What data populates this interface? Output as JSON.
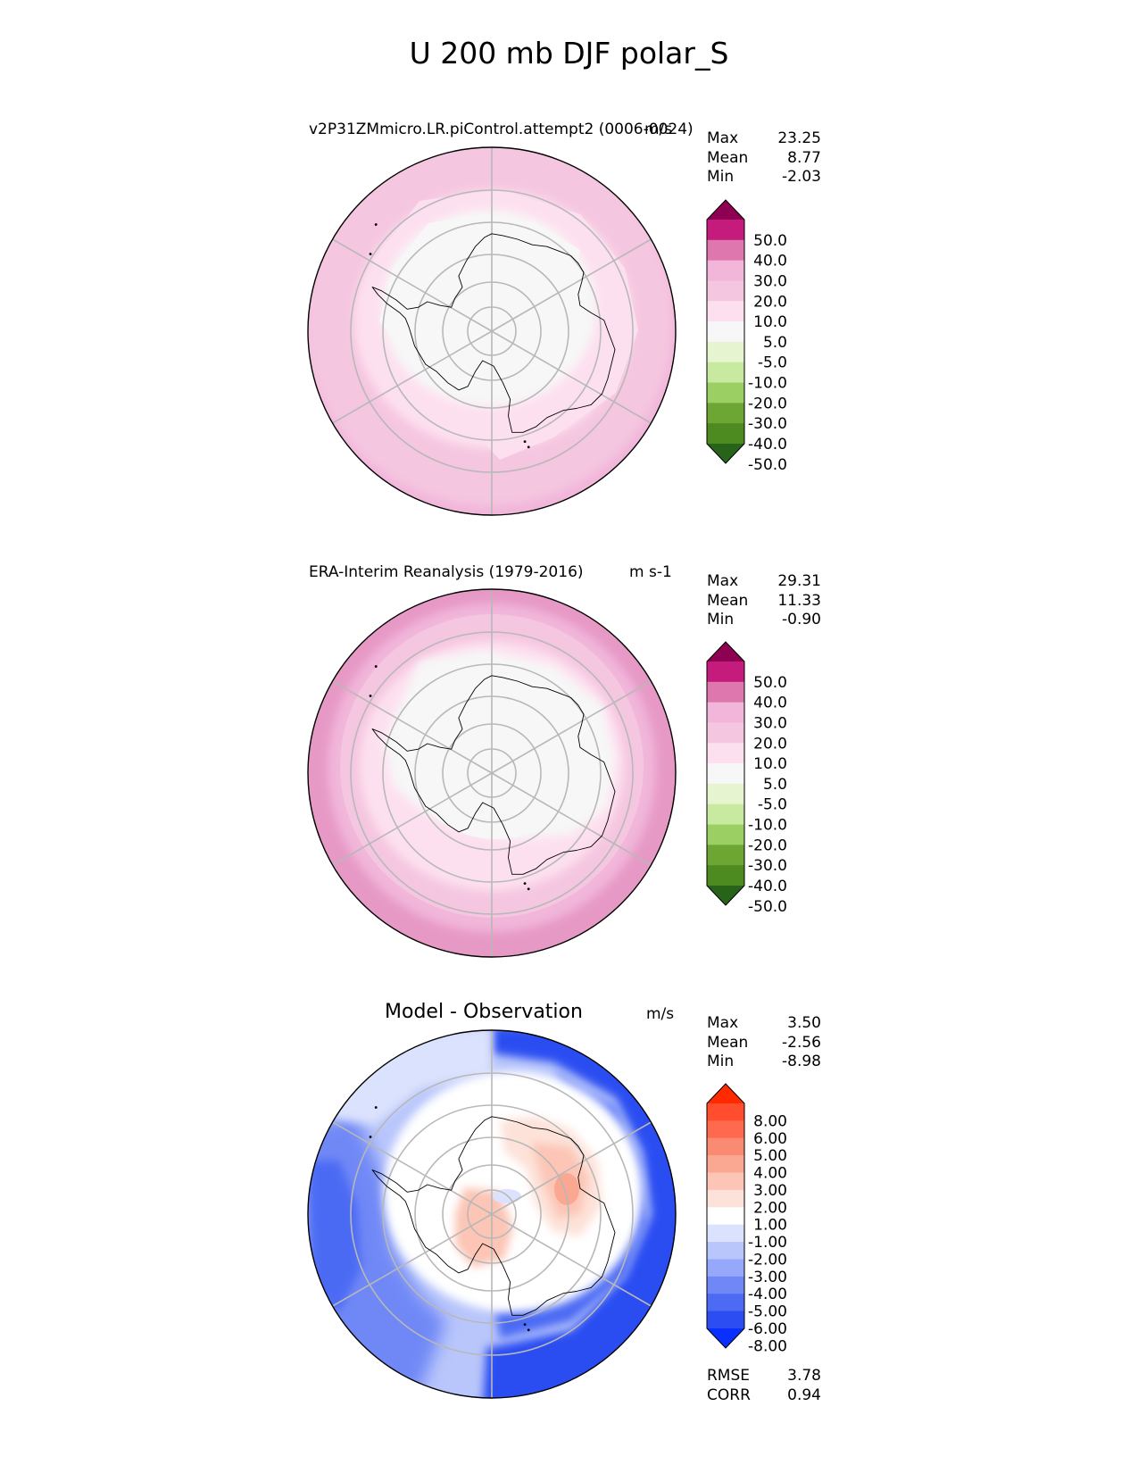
{
  "main_title": "U 200 mb DJF polar_S",
  "panels": [
    {
      "title": "v2P31ZMmicro.LR.piControl.attempt2 (0006-0024)",
      "units": "m/s",
      "stats": [
        {
          "label": "Max",
          "value": "23.25"
        },
        {
          "label": "Mean",
          "value": "8.77"
        },
        {
          "label": "Min",
          "value": "-2.03"
        }
      ],
      "colorbar": {
        "labels": [
          "50.0",
          "40.0",
          "30.0",
          "20.0",
          "10.0",
          "5.0",
          "-5.0",
          "-10.0",
          "-20.0",
          "-30.0",
          "-40.0",
          "-50.0"
        ],
        "colors": [
          "#8e0152",
          "#c51b7d",
          "#de77ae",
          "#f1b6da",
          "#f5c6e0",
          "#fde0ef",
          "#f7f7f7",
          "#e6f5d0",
          "#c8e9a0",
          "#9ccf63",
          "#6ea634",
          "#4d8a1f",
          "#276419"
        ]
      }
    },
    {
      "title": "ERA-Interim Reanalysis (1979-2016)",
      "units": "m s-1",
      "stats": [
        {
          "label": "Max",
          "value": "29.31"
        },
        {
          "label": "Mean",
          "value": "11.33"
        },
        {
          "label": "Min",
          "value": "-0.90"
        }
      ],
      "colorbar": {
        "labels": [
          "50.0",
          "40.0",
          "30.0",
          "20.0",
          "10.0",
          "5.0",
          "-5.0",
          "-10.0",
          "-20.0",
          "-30.0",
          "-40.0",
          "-50.0"
        ],
        "colors": [
          "#8e0152",
          "#c51b7d",
          "#de77ae",
          "#f1b6da",
          "#f5c6e0",
          "#fde0ef",
          "#f7f7f7",
          "#e6f5d0",
          "#c8e9a0",
          "#9ccf63",
          "#6ea634",
          "#4d8a1f",
          "#276419"
        ]
      }
    },
    {
      "title": "Model - Observation",
      "units": "m/s",
      "stats": [
        {
          "label": "Max",
          "value": "3.50"
        },
        {
          "label": "Mean",
          "value": "-2.56"
        },
        {
          "label": "Min",
          "value": "-8.98"
        }
      ],
      "extra_stats": [
        {
          "label": "RMSE",
          "value": "3.78"
        },
        {
          "label": "CORR",
          "value": "0.94"
        }
      ],
      "colorbar": {
        "labels": [
          "8.00",
          "6.00",
          "5.00",
          "4.00",
          "3.00",
          "2.00",
          "1.00",
          "-1.00",
          "-2.00",
          "-3.00",
          "-4.00",
          "-5.00",
          "-6.00",
          "-8.00"
        ],
        "colors": [
          "#ff2a00",
          "#ff4d2e",
          "#ff6a4f",
          "#fb8a72",
          "#fba892",
          "#fcc5b5",
          "#fde2d9",
          "#ffffff",
          "#dbe2fd",
          "#b9c6fb",
          "#96a8f9",
          "#7088f6",
          "#4c6af4",
          "#2b4df2",
          "#0a30ff"
        ]
      }
    }
  ],
  "chart_data": [
    {
      "type": "heatmap",
      "projection": "south polar stereographic",
      "title": "v2P31ZMmicro.LR.piControl.attempt2 (0006-0024)",
      "units": "m/s",
      "max": 23.25,
      "mean": 8.77,
      "min": -2.03,
      "levels": [
        -50,
        -40,
        -30,
        -20,
        -10,
        -5,
        5,
        10,
        20,
        30,
        40,
        50
      ]
    },
    {
      "type": "heatmap",
      "projection": "south polar stereographic",
      "title": "ERA-Interim Reanalysis (1979-2016)",
      "units": "m s-1",
      "max": 29.31,
      "mean": 11.33,
      "min": -0.9,
      "levels": [
        -50,
        -40,
        -30,
        -20,
        -10,
        -5,
        5,
        10,
        20,
        30,
        40,
        50
      ]
    },
    {
      "type": "heatmap",
      "projection": "south polar stereographic",
      "title": "Model - Observation",
      "units": "m/s",
      "max": 3.5,
      "mean": -2.56,
      "min": -8.98,
      "rmse": 3.78,
      "corr": 0.94,
      "levels": [
        -8,
        -6,
        -5,
        -4,
        -3,
        -2,
        -1,
        1,
        2,
        3,
        4,
        5,
        6,
        8
      ]
    }
  ]
}
